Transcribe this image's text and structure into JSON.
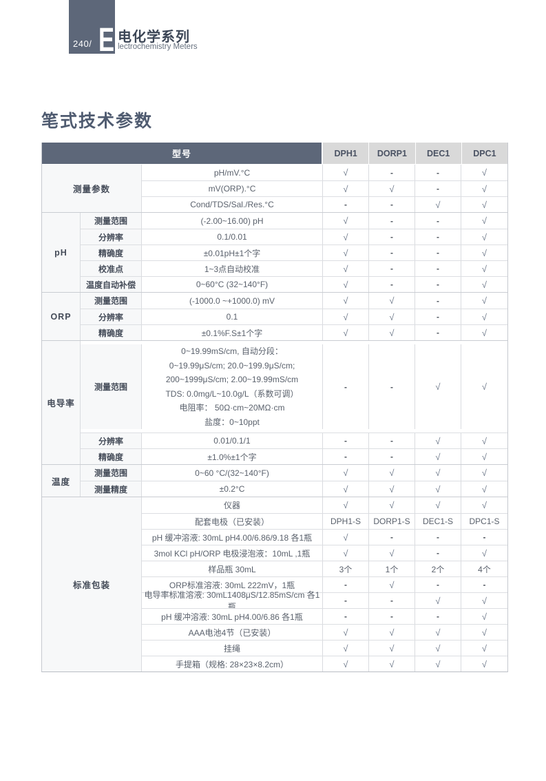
{
  "header": {
    "page_number": "240/",
    "brand_letter": "E",
    "series_title_cn": "电化学系列",
    "series_title_en": "lectrochemistry Meters"
  },
  "section_title": "笔式技术参数",
  "colors": {
    "accent_slate": "#5d6779",
    "model_header_bg": "#d9d9d9",
    "label_cell_bg": "#f7f8f9",
    "check_color": "#6d7889"
  },
  "table": {
    "model_header_label": "型号",
    "models": [
      "DPH1",
      "DORP1",
      "DEC1",
      "DPC1"
    ],
    "groups": [
      {
        "name": "测量参数",
        "merged": true,
        "rows": [
          {
            "param": "pH/mV.°C",
            "values": [
              "√",
              "-",
              "-",
              "√"
            ]
          },
          {
            "param": "mV(ORP).°C",
            "values": [
              "√",
              "√",
              "-",
              "√"
            ]
          },
          {
            "param": "Cond/TDS/Sal./Res.°C",
            "values": [
              "-",
              "-",
              "√",
              "√"
            ]
          }
        ]
      },
      {
        "name": "pH",
        "merged": false,
        "rows": [
          {
            "sub": "测量范围",
            "param": "(-2.00~16.00) pH",
            "values": [
              "√",
              "-",
              "-",
              "√"
            ]
          },
          {
            "sub": "分辨率",
            "param": "0.1/0.01",
            "values": [
              "√",
              "-",
              "-",
              "√"
            ]
          },
          {
            "sub": "精确度",
            "param": "±0.01pH±1个字",
            "values": [
              "√",
              "-",
              "-",
              "√"
            ]
          },
          {
            "sub": "校准点",
            "param": "1~3点自动校准",
            "values": [
              "√",
              "-",
              "-",
              "√"
            ]
          },
          {
            "sub": "温度自动补偿",
            "param": "0~60°C (32~140°F)",
            "values": [
              "√",
              "-",
              "-",
              "√"
            ]
          }
        ]
      },
      {
        "name": "ORP",
        "merged": false,
        "rows": [
          {
            "sub": "测量范围",
            "param": "(-1000.0 ~+1000.0) mV",
            "values": [
              "√",
              "√",
              "-",
              "√"
            ]
          },
          {
            "sub": "分辨率",
            "param": "0.1",
            "values": [
              "√",
              "√",
              "-",
              "√"
            ]
          },
          {
            "sub": "精确度",
            "param": "±0.1%F.S±1个字",
            "values": [
              "√",
              "√",
              "-",
              "√"
            ]
          }
        ]
      },
      {
        "name": "电导率",
        "merged": false,
        "rows": [
          {
            "sub": "测量范围",
            "tall": true,
            "lines": [
              "0~19.99mS/cm, 自动分段：",
              "0~19.99μS/cm; 20.0~199.9μS/cm;",
              "200~1999μS/cm; 2.00~19.99mS/cm",
              "TDS: 0.0mg/L~10.0g/L（系数可调）",
              "电阻率： 50Ω·cm~20MΩ·cm",
              "盐度：0~10ppt"
            ],
            "values": [
              "-",
              "-",
              "√",
              "√"
            ]
          },
          {
            "sub": "分辨率",
            "param": "0.01/0.1/1",
            "values": [
              "-",
              "-",
              "√",
              "√"
            ]
          },
          {
            "sub": "精确度",
            "param": "±1.0%±1个字",
            "values": [
              "-",
              "-",
              "√",
              "√"
            ]
          }
        ]
      },
      {
        "name": "温度",
        "merged": false,
        "rows": [
          {
            "sub": "测量范围",
            "param": "0~60 °C/(32~140°F)",
            "values": [
              "√",
              "√",
              "√",
              "√"
            ]
          },
          {
            "sub": "测量精度",
            "param": "±0.2°C",
            "values": [
              "√",
              "√",
              "√",
              "√"
            ]
          }
        ]
      },
      {
        "name": "标准包装",
        "merged": true,
        "rows": [
          {
            "param": "仪器",
            "values": [
              "√",
              "√",
              "√",
              "√"
            ]
          },
          {
            "param": "配套电极（已安装）",
            "values": [
              "DPH1-S",
              "DORP1-S",
              "DEC1-S",
              "DPC1-S"
            ]
          },
          {
            "param": "pH 缓冲溶液: 30mL pH4.00/6.86/9.18 各1瓶",
            "values": [
              "√",
              "-",
              "-",
              "-"
            ]
          },
          {
            "param": "3mol KCl pH/ORP 电极浸泡液：10mL ,1瓶",
            "values": [
              "√",
              "√",
              "-",
              "√"
            ]
          },
          {
            "param": "样品瓶 30mL",
            "values": [
              "3个",
              "1个",
              "2个",
              "4个"
            ]
          },
          {
            "param": "ORP标准溶液: 30mL 222mV，1瓶",
            "values": [
              "-",
              "√",
              "-",
              "-"
            ]
          },
          {
            "param": "电导率标准溶液: 30mL1408μS/12.85mS/cm 各1瓶",
            "values": [
              "-",
              "-",
              "√",
              "√"
            ]
          },
          {
            "param": "pH 缓冲溶液: 30mL pH4.00/6.86 各1瓶",
            "values": [
              "-",
              "-",
              "-",
              "√"
            ]
          },
          {
            "param": "AAA电池4节（已安装）",
            "values": [
              "√",
              "√",
              "√",
              "√"
            ]
          },
          {
            "param": "挂绳",
            "values": [
              "√",
              "√",
              "√",
              "√"
            ]
          },
          {
            "param": "手提箱（规格: 28×23×8.2cm）",
            "values": [
              "√",
              "√",
              "√",
              "√"
            ]
          }
        ]
      }
    ]
  }
}
